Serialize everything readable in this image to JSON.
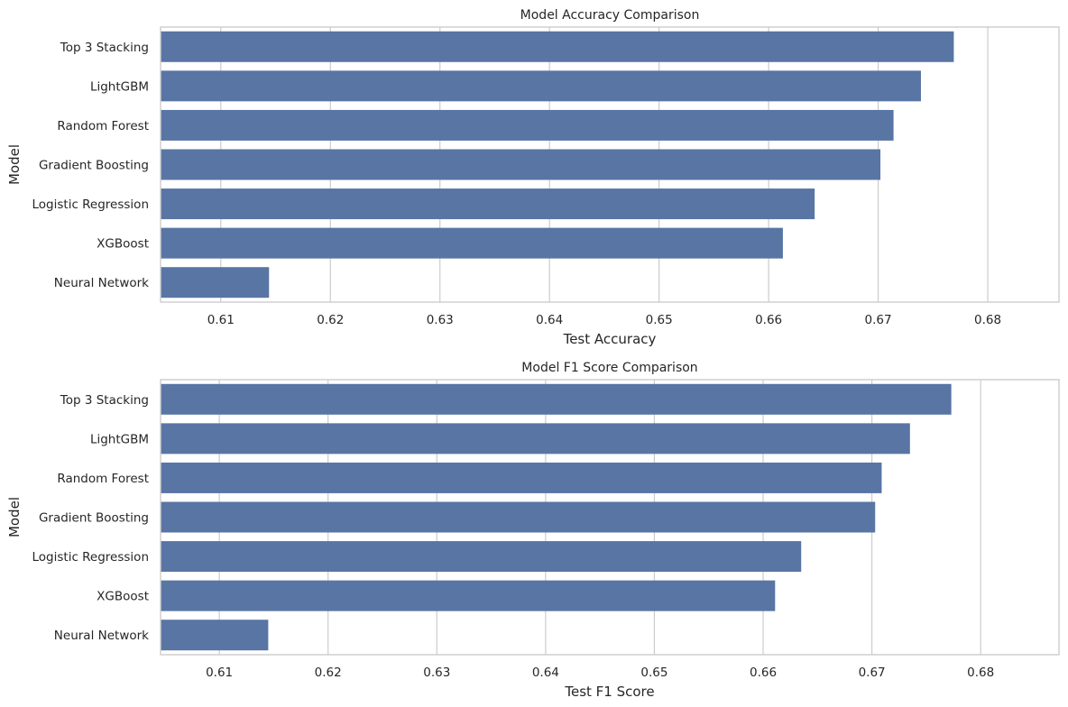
{
  "chart_data": [
    {
      "type": "bar",
      "orientation": "horizontal",
      "title": "Model Accuracy Comparison",
      "xlabel": "Test Accuracy",
      "ylabel": "Model",
      "xlim": [
        0.6045,
        0.6865
      ],
      "xticks": [
        0.61,
        0.62,
        0.63,
        0.64,
        0.65,
        0.66,
        0.67,
        0.68
      ],
      "grid": true,
      "bar_color": "#5875a4",
      "categories": [
        "Top 3 Stacking",
        "LightGBM",
        "Random Forest",
        "Gradient Boosting",
        "Logistic Regression",
        "XGBoost",
        "Neural Network"
      ],
      "values": [
        0.6769,
        0.6739,
        0.6714,
        0.6702,
        0.6642,
        0.6613,
        0.6144
      ]
    },
    {
      "type": "bar",
      "orientation": "horizontal",
      "title": "Model F1 Score Comparison",
      "xlabel": "Test F1 Score",
      "ylabel": "Model",
      "xlim": [
        0.6046,
        0.6872
      ],
      "xticks": [
        0.61,
        0.62,
        0.63,
        0.64,
        0.65,
        0.66,
        0.67,
        0.68
      ],
      "grid": true,
      "bar_color": "#5875a4",
      "categories": [
        "Top 3 Stacking",
        "LightGBM",
        "Random Forest",
        "Gradient Boosting",
        "Logistic Regression",
        "XGBoost",
        "Neural Network"
      ],
      "values": [
        0.6773,
        0.6735,
        0.6709,
        0.6703,
        0.6635,
        0.6611,
        0.6145
      ]
    }
  ]
}
